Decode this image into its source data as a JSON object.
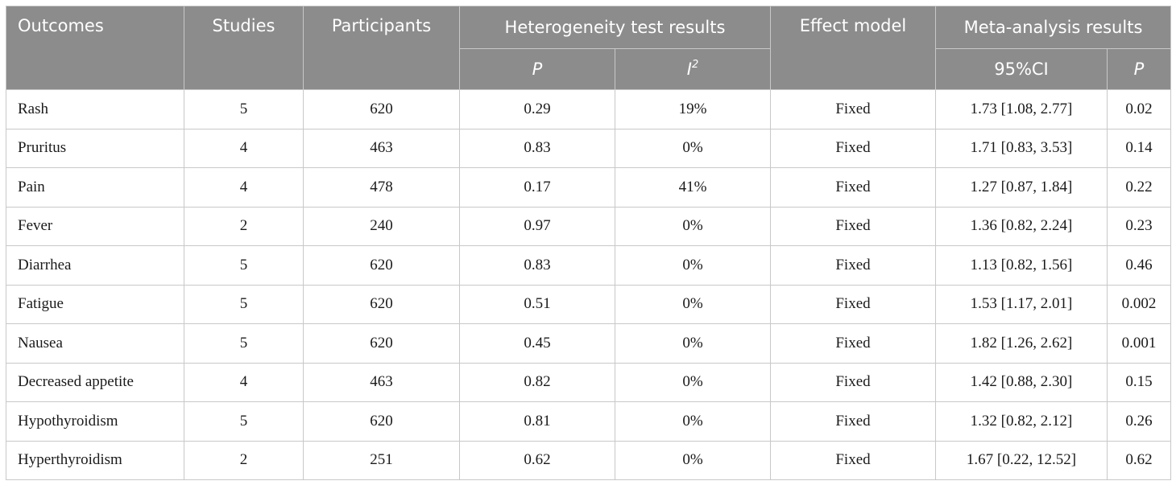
{
  "table": {
    "headers": {
      "outcomes": "Outcomes",
      "studies": "Studies",
      "participants": "Participants",
      "heterogeneity": "Heterogeneity test results",
      "het_p": "P",
      "het_i": "I",
      "het_i_sup": "2",
      "effect_model": "Effect model",
      "meta": "Meta-analysis results",
      "meta_ci": "95%CI",
      "meta_p": "P"
    },
    "rows": [
      {
        "outcome": "Rash",
        "studies": "5",
        "participants": "620",
        "het_p": "0.29",
        "i2": "19%",
        "model": "Fixed",
        "ci": "1.73 [1.08, 2.77]",
        "p": "0.02"
      },
      {
        "outcome": "Pruritus",
        "studies": "4",
        "participants": "463",
        "het_p": "0.83",
        "i2": "0%",
        "model": "Fixed",
        "ci": "1.71 [0.83, 3.53]",
        "p": "0.14"
      },
      {
        "outcome": "Pain",
        "studies": "4",
        "participants": "478",
        "het_p": "0.17",
        "i2": "41%",
        "model": "Fixed",
        "ci": "1.27 [0.87, 1.84]",
        "p": "0.22"
      },
      {
        "outcome": "Fever",
        "studies": "2",
        "participants": "240",
        "het_p": "0.97",
        "i2": "0%",
        "model": "Fixed",
        "ci": "1.36 [0.82, 2.24]",
        "p": "0.23"
      },
      {
        "outcome": "Diarrhea",
        "studies": "5",
        "participants": "620",
        "het_p": "0.83",
        "i2": "0%",
        "model": "Fixed",
        "ci": "1.13 [0.82, 1.56]",
        "p": "0.46"
      },
      {
        "outcome": "Fatigue",
        "studies": "5",
        "participants": "620",
        "het_p": "0.51",
        "i2": "0%",
        "model": "Fixed",
        "ci": "1.53 [1.17, 2.01]",
        "p": "0.002"
      },
      {
        "outcome": "Nausea",
        "studies": "5",
        "participants": "620",
        "het_p": "0.45",
        "i2": "0%",
        "model": "Fixed",
        "ci": "1.82 [1.26, 2.62]",
        "p": "0.001"
      },
      {
        "outcome": "Decreased appetite",
        "studies": "4",
        "participants": "463",
        "het_p": "0.82",
        "i2": "0%",
        "model": "Fixed",
        "ci": "1.42 [0.88, 2.30]",
        "p": "0.15"
      },
      {
        "outcome": "Hypothyroidism",
        "studies": "5",
        "participants": "620",
        "het_p": "0.81",
        "i2": "0%",
        "model": "Fixed",
        "ci": "1.32 [0.82, 2.12]",
        "p": "0.26"
      },
      {
        "outcome": "Hyperthyroidism",
        "studies": "2",
        "participants": "251",
        "het_p": "0.62",
        "i2": "0%",
        "model": "Fixed",
        "ci": "1.67 [0.22, 12.52]",
        "p": "0.62"
      }
    ]
  }
}
